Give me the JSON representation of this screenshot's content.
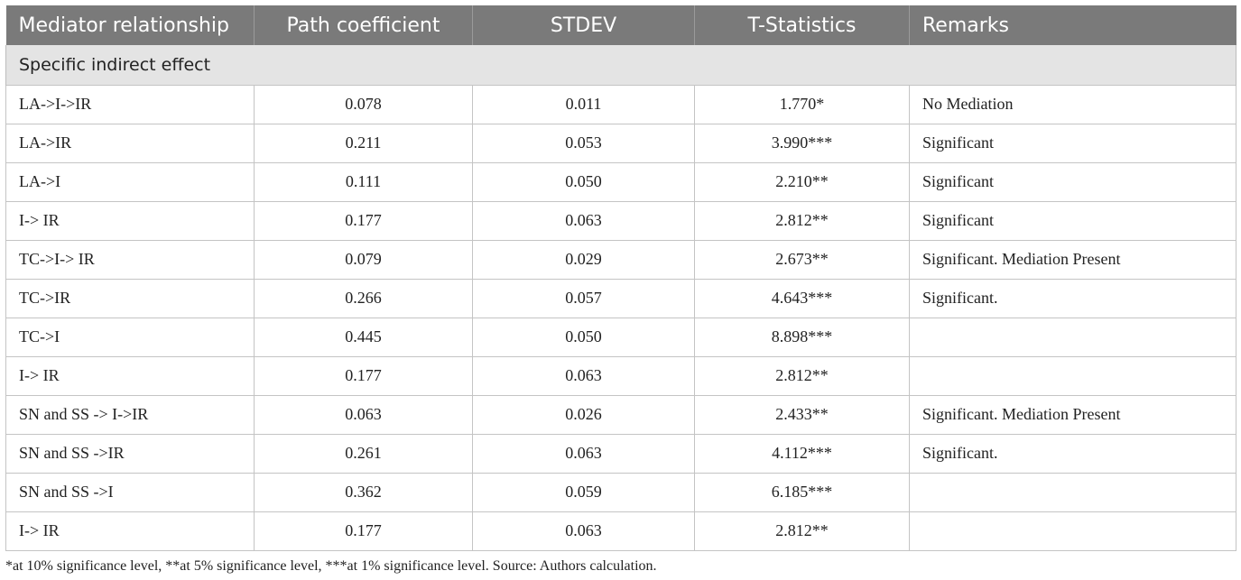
{
  "table": {
    "headers": [
      "Mediator relationship",
      "Path coefficient",
      "STDEV",
      "T-Statistics",
      "Remarks"
    ],
    "section_label": "Specific indirect effect",
    "rows": [
      [
        "LA->I->IR",
        "0.078",
        "0.011",
        "1.770*",
        "No Mediation"
      ],
      [
        "LA->IR",
        "0.211",
        "0.053",
        "3.990***",
        "Significant"
      ],
      [
        "LA->I",
        "0.111",
        "0.050",
        "2.210**",
        "Significant"
      ],
      [
        "I-> IR",
        "0.177",
        "0.063",
        "2.812**",
        "Significant"
      ],
      [
        "TC->I-> IR",
        "0.079",
        "0.029",
        "2.673**",
        "Significant. Mediation Present"
      ],
      [
        "TC->IR",
        "0.266",
        "0.057",
        "4.643***",
        "Significant."
      ],
      [
        "TC->I",
        "0.445",
        "0.050",
        "8.898***",
        ""
      ],
      [
        "I-> IR",
        "0.177",
        "0.063",
        "2.812**",
        ""
      ],
      [
        "SN and SS -> I->IR",
        "0.063",
        "0.026",
        "2.433**",
        "Significant. Mediation Present"
      ],
      [
        "SN and SS ->IR",
        "0.261",
        "0.063",
        "4.112***",
        "Significant."
      ],
      [
        "SN and SS ->I",
        "0.362",
        "0.059",
        "6.185***",
        ""
      ],
      [
        "I-> IR",
        "0.177",
        "0.063",
        "2.812**",
        ""
      ]
    ]
  },
  "footnote": "*at 10% significance level, **at 5% significance level, ***at 1% significance level. Source: Authors calculation.",
  "colors": {
    "header_bg": "#7a7a7a",
    "section_bg": "#e4e4e4",
    "border": "#c4c4c4"
  }
}
